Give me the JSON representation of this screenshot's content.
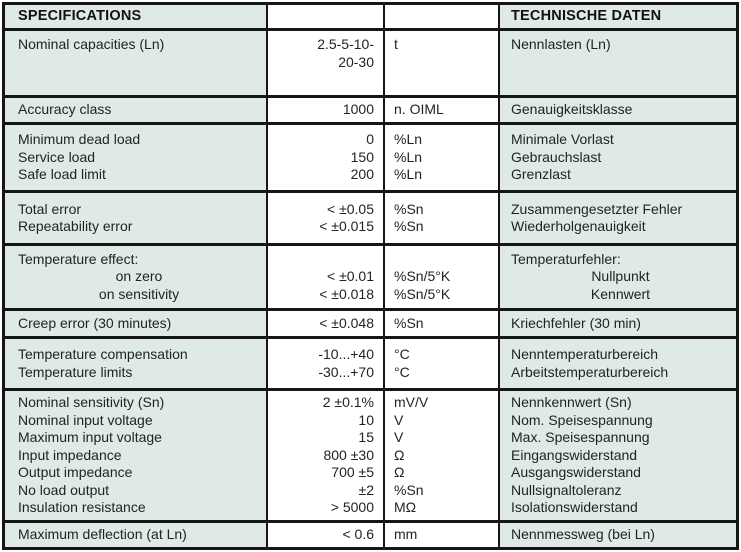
{
  "header": {
    "left": "SPECIFICATIONS",
    "right": "TECHNISCHE DATEN"
  },
  "colors": {
    "label_cell_green": "#dfeae4",
    "value_cell_white": "#ffffff",
    "border_black": "#161616",
    "text": "#232323"
  },
  "rows": [
    {
      "en": [
        "Nominal capacities (Ln)"
      ],
      "value": [
        "2.5-5-10-",
        "20-30"
      ],
      "unit": [
        "t"
      ],
      "de": [
        "Nennlasten (Ln)"
      ]
    },
    {
      "en": [
        "Accuracy class"
      ],
      "value": [
        "1000"
      ],
      "unit": [
        "n. OIML"
      ],
      "de": [
        "Genauigkeitsklasse"
      ]
    },
    {
      "en": [
        "Minimum dead load",
        "Service load",
        "Safe load limit"
      ],
      "value": [
        "0",
        "150",
        "200"
      ],
      "unit": [
        "%Ln",
        "%Ln",
        "%Ln"
      ],
      "de": [
        "Minimale Vorlast",
        "Gebrauchslast",
        "Grenzlast"
      ]
    },
    {
      "en": [
        "Total error",
        "Repeatability error"
      ],
      "value": [
        "< ±0.05",
        "< ±0.015"
      ],
      "unit": [
        "%Sn",
        "%Sn"
      ],
      "de": [
        "Zusammengesetzter Fehler",
        "Wiederholgenauigkeit"
      ]
    },
    {
      "en": [
        "Temperature effect:",
        "on zero",
        "on sensitivity"
      ],
      "value": [
        "",
        "< ±0.01",
        "< ±0.018"
      ],
      "unit": [
        "",
        "%Sn/5°K",
        "%Sn/5°K"
      ],
      "de": [
        "Temperaturfehler:",
        "Nullpunkt",
        "Kennwert"
      ]
    },
    {
      "en": [
        "Creep error (30 minutes)"
      ],
      "value": [
        "< ±0.048"
      ],
      "unit": [
        "%Sn"
      ],
      "de": [
        "Kriechfehler (30 min)"
      ]
    },
    {
      "en": [
        "Temperature compensation",
        "Temperature limits"
      ],
      "value": [
        "-10...+40",
        "-30...+70"
      ],
      "unit": [
        "°C",
        "°C"
      ],
      "de": [
        "Nenntemperaturbereich",
        "Arbeitstemperaturbereich"
      ]
    },
    {
      "en": [
        "Nominal sensitivity (Sn)",
        "Nominal input voltage",
        "Maximum input voltage",
        "Input impedance",
        "Output impedance",
        "No load output",
        "Insulation resistance"
      ],
      "value": [
        "2 ±0.1%",
        "10",
        "15",
        "800 ±30",
        "700 ±5",
        "±2",
        "> 5000"
      ],
      "unit": [
        "mV/V",
        "V",
        "V",
        "Ω",
        "Ω",
        "%Sn",
        "MΩ"
      ],
      "de": [
        "Nennkennwert (Sn)",
        "Nom. Speisespannung",
        "Max. Speisespannung",
        "Eingangswiderstand",
        "Ausgangswiderstand",
        "Nullsignaltoleranz",
        "Isolationswiderstand"
      ]
    },
    {
      "en": [
        "Maximum deflection (at Ln)"
      ],
      "value": [
        "< 0.6"
      ],
      "unit": [
        "mm"
      ],
      "de": [
        "Nennmessweg (bei Ln)"
      ]
    }
  ]
}
